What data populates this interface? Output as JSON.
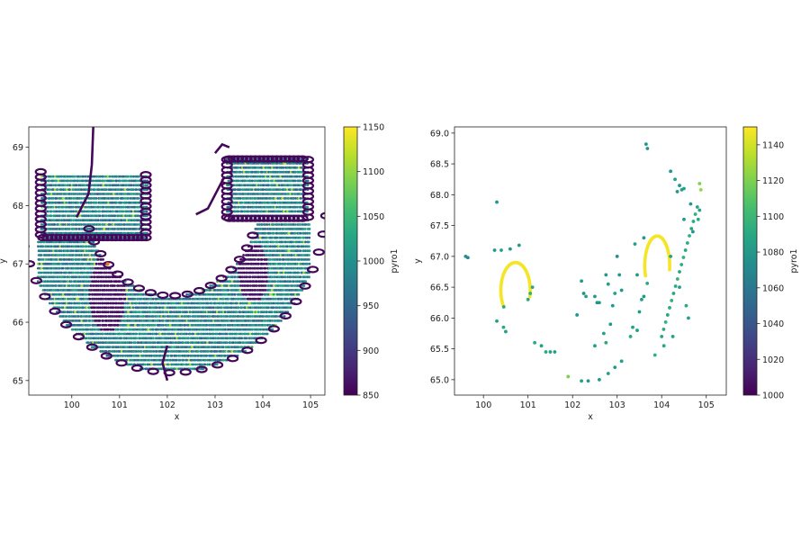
{
  "chart_data": [
    {
      "type": "scatter",
      "xlabel": "x",
      "ylabel": "y",
      "xlim": [
        99.1,
        105.3
      ],
      "ylim": [
        64.75,
        69.35
      ],
      "xticks": [
        "100",
        "101",
        "102",
        "103",
        "104",
        "105"
      ],
      "yticks": [
        "65",
        "66",
        "67",
        "68",
        "69"
      ],
      "colorbar": {
        "label": "pyro1",
        "range": [
          850,
          1150
        ],
        "ticks": [
          "850",
          "900",
          "950",
          "1000",
          "1050",
          "1100",
          "1150"
        ],
        "colormap": "viridis"
      },
      "regions": {
        "arc_center": [
          102.1,
          68.2
        ],
        "inner_radius": 1.85,
        "outer_radius": 3.25,
        "ends": {
          "left_y": 67.45,
          "right_y": 67.75
        },
        "cold_ellipses": [
          {
            "center": [
              100.75,
              66.5
            ],
            "rx": 0.38,
            "ry": 0.68,
            "value": 855
          },
          {
            "center": [
              103.8,
              66.85
            ],
            "rx": 0.32,
            "ry": 0.52,
            "value": 855
          }
        ]
      },
      "values_note_typical": 1000
    },
    {
      "type": "scatter",
      "xlabel": "x",
      "ylabel": "y",
      "xlim": [
        99.35,
        105.45
      ],
      "ylim": [
        64.75,
        69.1
      ],
      "xticks": [
        "100",
        "101",
        "102",
        "103",
        "104",
        "105"
      ],
      "yticks": [
        "65.0",
        "65.5",
        "66.0",
        "66.5",
        "67.0",
        "67.5",
        "68.0",
        "68.5",
        "69.0"
      ],
      "colorbar": {
        "label": "pyro1",
        "range": [
          1000,
          1150
        ],
        "ticks": [
          "1000",
          "1020",
          "1040",
          "1060",
          "1080",
          "1100",
          "1120",
          "1140"
        ],
        "colormap": "viridis"
      },
      "arcs": [
        {
          "center": [
            100.72,
            66.45
          ],
          "rx": 0.33,
          "ry": 0.45,
          "from_deg": 215,
          "to_deg": -15,
          "value": 1148
        },
        {
          "center": [
            103.9,
            66.85
          ],
          "rx": 0.28,
          "ry": 0.48,
          "from_deg": 200,
          "to_deg": -10,
          "value": 1148
        }
      ],
      "points": [
        [
          99.6,
          67.0,
          1075
        ],
        [
          99.65,
          66.98,
          1070
        ],
        [
          100.3,
          67.88,
          1080
        ],
        [
          100.25,
          67.1,
          1080
        ],
        [
          100.4,
          67.1,
          1085
        ],
        [
          100.6,
          67.12,
          1080
        ],
        [
          100.8,
          67.18,
          1080
        ],
        [
          100.3,
          65.95,
          1085
        ],
        [
          100.45,
          65.85,
          1090
        ],
        [
          100.5,
          65.78,
          1085
        ],
        [
          101.0,
          66.3,
          1090
        ],
        [
          101.05,
          66.4,
          1095
        ],
        [
          101.1,
          66.5,
          1090
        ],
        [
          101.15,
          65.6,
          1090
        ],
        [
          101.3,
          65.55,
          1085
        ],
        [
          101.4,
          65.45,
          1090
        ],
        [
          101.5,
          65.45,
          1085
        ],
        [
          101.6,
          65.45,
          1085
        ],
        [
          101.9,
          65.05,
          1120
        ],
        [
          102.2,
          66.6,
          1080
        ],
        [
          102.25,
          66.4,
          1075
        ],
        [
          102.3,
          66.35,
          1085
        ],
        [
          102.1,
          66.05,
          1080
        ],
        [
          102.5,
          66.35,
          1080
        ],
        [
          102.55,
          66.25,
          1075
        ],
        [
          102.6,
          66.25,
          1080
        ],
        [
          102.75,
          66.7,
          1080
        ],
        [
          102.8,
          66.55,
          1085
        ],
        [
          102.9,
          66.2,
          1080
        ],
        [
          102.95,
          66.4,
          1085
        ],
        [
          103.0,
          67.0,
          1075
        ],
        [
          103.05,
          66.7,
          1080
        ],
        [
          103.1,
          66.45,
          1080
        ],
        [
          102.85,
          65.9,
          1080
        ],
        [
          102.7,
          65.75,
          1085
        ],
        [
          102.75,
          65.6,
          1090
        ],
        [
          102.5,
          65.55,
          1085
        ],
        [
          102.2,
          64.98,
          1085
        ],
        [
          102.35,
          64.98,
          1080
        ],
        [
          102.6,
          65.0,
          1080
        ],
        [
          102.8,
          65.1,
          1085
        ],
        [
          102.95,
          65.2,
          1080
        ],
        [
          103.1,
          65.3,
          1085
        ],
        [
          103.3,
          65.7,
          1090
        ],
        [
          103.35,
          65.85,
          1085
        ],
        [
          103.45,
          65.8,
          1085
        ],
        [
          103.5,
          66.1,
          1080
        ],
        [
          103.55,
          66.3,
          1085
        ],
        [
          103.6,
          66.35,
          1080
        ],
        [
          103.45,
          66.7,
          1080
        ],
        [
          103.4,
          67.2,
          1085
        ],
        [
          103.6,
          67.3,
          1080
        ],
        [
          103.65,
          68.82,
          1080
        ],
        [
          103.68,
          68.75,
          1080
        ],
        [
          104.2,
          68.38,
          1080
        ],
        [
          104.3,
          68.25,
          1085
        ],
        [
          104.35,
          68.05,
          1080
        ],
        [
          104.4,
          68.15,
          1080
        ],
        [
          104.45,
          68.08,
          1085
        ],
        [
          104.5,
          68.1,
          1085
        ],
        [
          104.65,
          67.85,
          1080
        ],
        [
          104.5,
          67.6,
          1080
        ],
        [
          104.7,
          67.4,
          1080
        ],
        [
          104.85,
          68.18,
          1120
        ],
        [
          104.88,
          68.08,
          1125
        ],
        [
          104.85,
          67.75,
          1085
        ],
        [
          104.82,
          67.6,
          1090
        ],
        [
          104.2,
          67.0,
          1085
        ],
        [
          104.4,
          66.5,
          1085
        ],
        [
          104.55,
          66.2,
          1090
        ],
        [
          104.6,
          66.0,
          1085
        ],
        [
          104.25,
          65.7,
          1085
        ],
        [
          104.05,
          65.55,
          1090
        ],
        [
          103.85,
          65.4,
          1095
        ]
      ],
      "streak": {
        "from": [
          104.0,
          65.7
        ],
        "to": [
          104.8,
          67.8
        ],
        "value": 1088
      }
    }
  ]
}
